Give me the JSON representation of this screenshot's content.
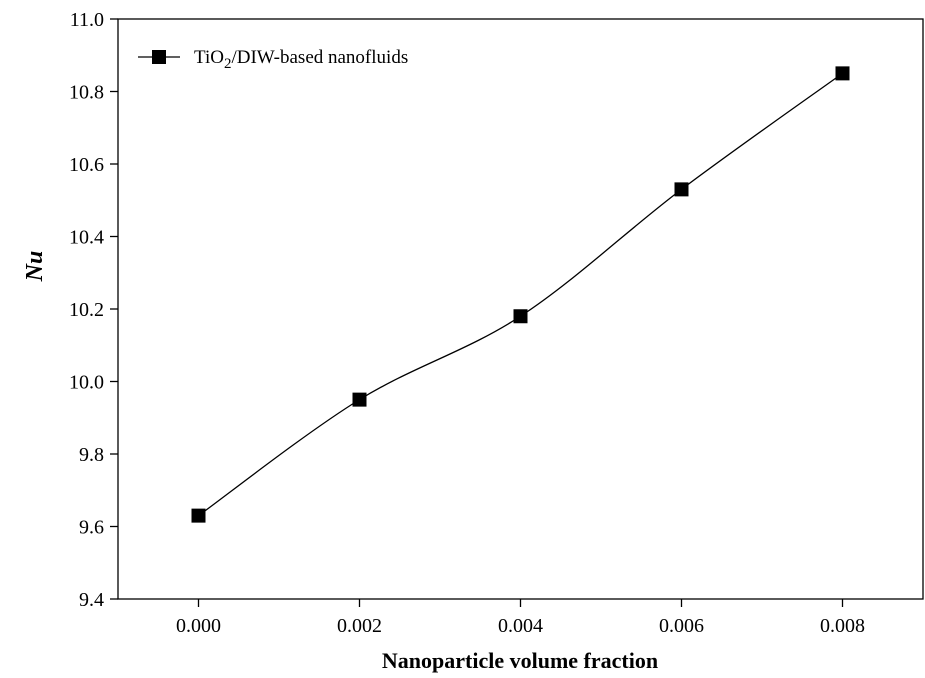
{
  "chart_data": {
    "type": "line",
    "xlabel": "Nanoparticle volume fraction",
    "ylabel": "Nu",
    "xlim": [
      -0.001,
      0.009
    ],
    "ylim": [
      9.4,
      11.0
    ],
    "x_ticks": [
      "0.000",
      "0.002",
      "0.004",
      "0.006",
      "0.008"
    ],
    "y_ticks": [
      "9.4",
      "9.6",
      "9.8",
      "10.0",
      "10.2",
      "10.4",
      "10.6",
      "10.8",
      "11.0"
    ],
    "grid": false,
    "legend_position": "top-left",
    "legend": {
      "label_prefix": "TiO",
      "label_subscript": "2",
      "label_suffix": "/DIW-based nanofluids"
    },
    "series": [
      {
        "name": "TiO2/DIW-based nanofluids",
        "marker": "square",
        "color": "#000000",
        "x": [
          0.0,
          0.002,
          0.004,
          0.006,
          0.008
        ],
        "y": [
          9.63,
          9.95,
          10.18,
          10.53,
          10.85
        ]
      }
    ]
  }
}
